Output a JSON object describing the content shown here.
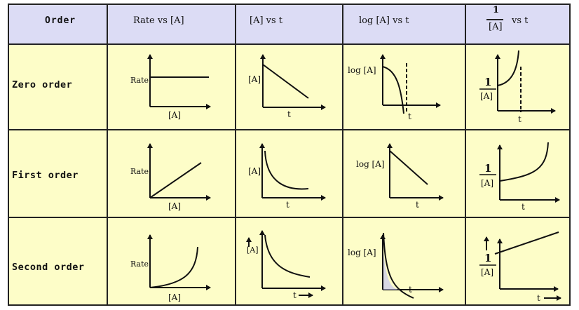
{
  "headers": {
    "order": "Order",
    "rate_vs_A": "Rate vs [A]",
    "A_vs_t": "[A] vs t",
    "logA_vs_t": "log [A] vs t",
    "inv_num": "1",
    "inv_den": "[A]",
    "inv_vs": "vs t"
  },
  "rows": [
    {
      "label": "Zero  order"
    },
    {
      "label": "First  order"
    },
    {
      "label": "Second  order"
    }
  ],
  "axis_labels": {
    "rate": "Rate",
    "A": "[A]",
    "t": "t",
    "logA": "log [A]",
    "one": "1",
    "A_den": "[A]"
  },
  "colors": {
    "header_bg": "#dcdcf5",
    "cell_bg": "#fdfdc8",
    "line": "#111111"
  }
}
